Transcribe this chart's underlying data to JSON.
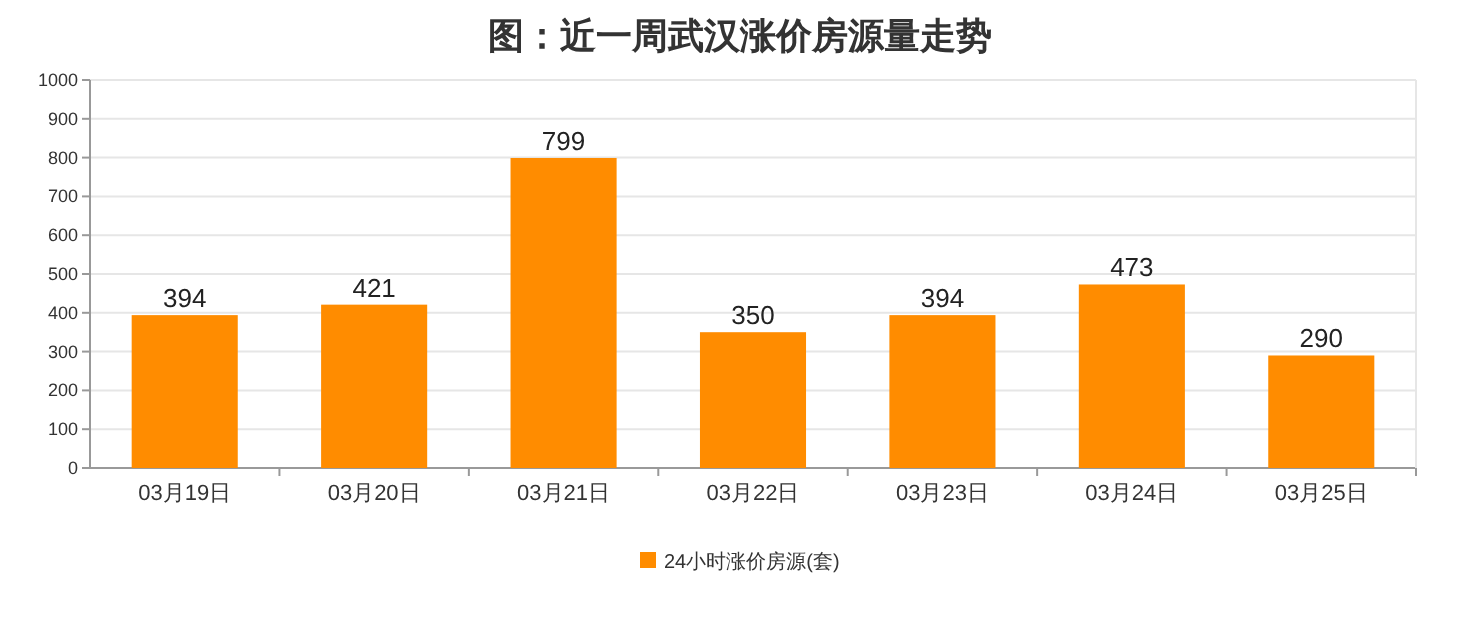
{
  "chart_data": {
    "type": "bar",
    "title": "图：近一周武汉涨价房源量走势",
    "categories": [
      "03月19日",
      "03月20日",
      "03月21日",
      "03月22日",
      "03月23日",
      "03月24日",
      "03月25日"
    ],
    "series": [
      {
        "name": "24小时涨价房源(套)",
        "color": "#ff8c00",
        "values": [
          394,
          421,
          799,
          350,
          394,
          473,
          290
        ]
      }
    ],
    "ylim": [
      0,
      1000
    ],
    "yticks": [
      0,
      100,
      200,
      300,
      400,
      500,
      600,
      700,
      800,
      900,
      1000
    ],
    "grid": "y",
    "legend": "bottom",
    "data_labels": true
  }
}
